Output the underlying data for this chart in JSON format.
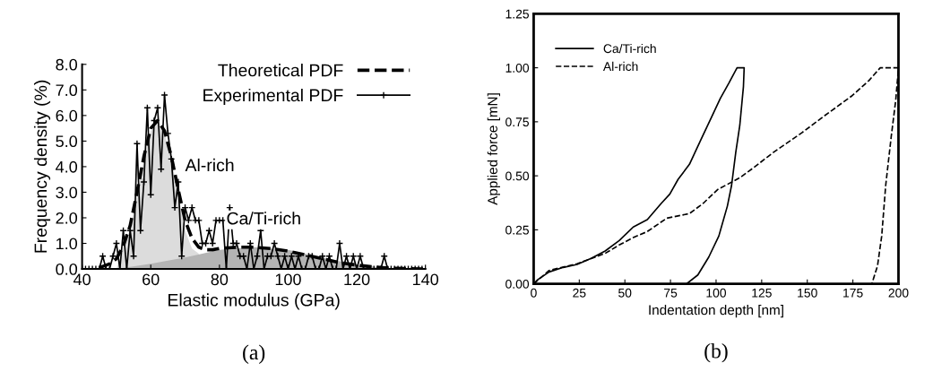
{
  "chart_data": [
    {
      "type": "line",
      "xlabel": "Elastic modulus (GPa)",
      "ylabel": "Frequency density (%)",
      "xlim": [
        40,
        140
      ],
      "ylim": [
        0,
        8
      ],
      "xticks": [
        40,
        60,
        80,
        100,
        120,
        140
      ],
      "yticks": [
        {
          "value": 0,
          "label": "0.0"
        },
        {
          "value": 1,
          "label": "1.0"
        },
        {
          "value": 2,
          "label": "2.0"
        },
        {
          "value": 3,
          "label": "3.0"
        },
        {
          "value": 4,
          "label": "4.0"
        },
        {
          "value": 5,
          "label": "5.0"
        },
        {
          "value": 6,
          "label": "6.0"
        },
        {
          "value": 7,
          "label": "7.0"
        },
        {
          "value": 8,
          "label": "8.0"
        }
      ],
      "legend": "top right",
      "grid": false,
      "annotations": [
        "Al-rich",
        "Ca/Ti-rich",
        "(a)"
      ],
      "series": [
        {
          "type": "area",
          "color": "#dcdcdc",
          "x": [
            50,
            52,
            54,
            56,
            58,
            60,
            62,
            64,
            66,
            68,
            70,
            72,
            74
          ],
          "values": [
            0,
            0.8,
            1.6,
            2.9,
            4.3,
            5.4,
            5.7,
            5.3,
            4.3,
            2.9,
            1.5,
            0.8,
            0.6
          ]
        },
        {
          "type": "area",
          "color": "#b4b4b4",
          "x": [
            50,
            60,
            70,
            80,
            90,
            100,
            110,
            120,
            130,
            140
          ],
          "values": [
            0,
            0.2,
            0.45,
            0.75,
            0.85,
            0.75,
            0.45,
            0.15,
            0.03,
            0
          ]
        },
        {
          "name": "Theoretical PDF",
          "color": "#000000",
          "line_style": "dashed",
          "marker": "none",
          "x": [
            45,
            48,
            50,
            52,
            54,
            56,
            58,
            60,
            62,
            64,
            66,
            68,
            70,
            72,
            74,
            76,
            78,
            80,
            85,
            90,
            95,
            100,
            105,
            110,
            115,
            120,
            125,
            130,
            135,
            140
          ],
          "values": [
            0.05,
            0.2,
            0.4,
            0.9,
            1.7,
            3.0,
            4.4,
            5.5,
            5.8,
            5.4,
            4.4,
            3.1,
            1.9,
            1.2,
            0.85,
            0.75,
            0.75,
            0.8,
            0.85,
            0.85,
            0.8,
            0.7,
            0.55,
            0.4,
            0.25,
            0.15,
            0.08,
            0.03,
            0.01,
            0
          ]
        },
        {
          "name": "Experimental PDF",
          "color": "#000000",
          "line_style": "solid",
          "marker": "cross",
          "x": [
            40,
            41,
            42,
            43,
            44,
            45,
            46,
            47,
            48,
            49,
            50,
            51,
            52,
            53,
            54,
            55,
            56,
            57,
            58,
            59,
            60,
            61,
            62,
            63,
            64,
            65,
            66,
            67,
            68,
            69,
            70,
            71,
            72,
            73,
            74,
            75,
            76,
            77,
            78,
            79,
            80,
            81,
            82,
            83,
            84,
            85,
            86,
            87,
            88,
            89,
            90,
            91,
            92,
            93,
            94,
            95,
            96,
            97,
            98,
            99,
            100,
            101,
            102,
            103,
            104,
            105,
            106,
            107,
            108,
            109,
            110,
            111,
            112,
            113,
            114,
            115,
            116,
            117,
            118,
            119,
            120,
            121,
            122,
            123,
            124,
            125,
            126,
            127,
            128,
            129,
            130,
            131,
            132,
            133,
            134,
            135,
            136,
            137,
            138,
            139,
            140
          ],
          "values": [
            0,
            0,
            0,
            0,
            0,
            0,
            0.5,
            0,
            0,
            0.5,
            1.0,
            0,
            1.5,
            0,
            1.5,
            0.5,
            4.9,
            1.5,
            3.4,
            6.3,
            2.9,
            5.8,
            6.3,
            3.9,
            6.8,
            5.3,
            4.3,
            2.4,
            3.4,
            0.5,
            2.4,
            1.9,
            2.4,
            1.9,
            1.9,
            1.0,
            1.0,
            1.5,
            1.0,
            1.9,
            1.9,
            1.9,
            0,
            2.4,
            1.0,
            1.0,
            0.5,
            0.5,
            0,
            1.0,
            0,
            0.5,
            1.5,
            0,
            0.5,
            0.5,
            1.0,
            0.5,
            0,
            0.5,
            0,
            0.5,
            0,
            0.5,
            0,
            0,
            0.5,
            0.5,
            0,
            0,
            0.5,
            0,
            0.5,
            0,
            0,
            1.0,
            0,
            0.5,
            0,
            0.5,
            0,
            0.5,
            0,
            0,
            0,
            0,
            0,
            0,
            0.5,
            0,
            0,
            0,
            0,
            0,
            0,
            0,
            0,
            0,
            0,
            0,
            0
          ]
        }
      ]
    },
    {
      "type": "line",
      "xlabel": "Indentation depth [nm]",
      "ylabel": "Applied force [mN]",
      "xlim": [
        0,
        200
      ],
      "ylim": [
        0,
        1.25
      ],
      "xticks": [
        0,
        25,
        50,
        75,
        100,
        125,
        150,
        175,
        200
      ],
      "yticks": [
        {
          "value": 0,
          "label": "0.00"
        },
        {
          "value": 0.25,
          "label": "0.25"
        },
        {
          "value": 0.5,
          "label": "0.50"
        },
        {
          "value": 0.75,
          "label": "0.75"
        },
        {
          "value": 1.0,
          "label": "1.00"
        },
        {
          "value": 1.25,
          "label": "1.25"
        }
      ],
      "legend": "top left",
      "grid": false,
      "annotations": [
        "(b)"
      ],
      "series": [
        {
          "name": "Ca/Ti-rich",
          "color": "#000000",
          "line_style": "solid",
          "marker": "none",
          "x": [
            0,
            2.3,
            8.5,
            16.2,
            23.8,
            31.5,
            39.2,
            46.9,
            54.6,
            62.3,
            70,
            74.6,
            79.2,
            85.4,
            91.5,
            97.7,
            102.3,
            106.9,
            111.5,
            115.4,
            115,
            113,
            110.8,
            108.5,
            106.2,
            101.5,
            96,
            90,
            83.8
          ],
          "values": [
            0,
            0.02,
            0.055,
            0.076,
            0.09,
            0.118,
            0.152,
            0.2,
            0.263,
            0.297,
            0.373,
            0.415,
            0.484,
            0.553,
            0.664,
            0.775,
            0.858,
            0.927,
            1.0,
            1.0,
            0.913,
            0.733,
            0.609,
            0.456,
            0.36,
            0.221,
            0.124,
            0.041,
            0
          ]
        },
        {
          "name": "Al-rich",
          "color": "#000000",
          "line_style": "dashed",
          "marker": "none",
          "x": [
            0,
            8.5,
            23.8,
            39.2,
            46.9,
            54.6,
            62.3,
            73,
            85.4,
            93,
            100.8,
            113,
            120.8,
            131.5,
            147,
            159,
            174.6,
            183.8,
            190,
            196,
            200,
            198.5,
            196,
            193,
            190.8,
            188.5,
            185.4
          ],
          "values": [
            0,
            0.062,
            0.093,
            0.141,
            0.18,
            0.214,
            0.242,
            0.304,
            0.325,
            0.373,
            0.436,
            0.491,
            0.539,
            0.609,
            0.699,
            0.775,
            0.871,
            0.941,
            1.0,
            1.0,
            1.0,
            0.85,
            0.68,
            0.456,
            0.221,
            0.083,
            0
          ]
        }
      ]
    }
  ]
}
